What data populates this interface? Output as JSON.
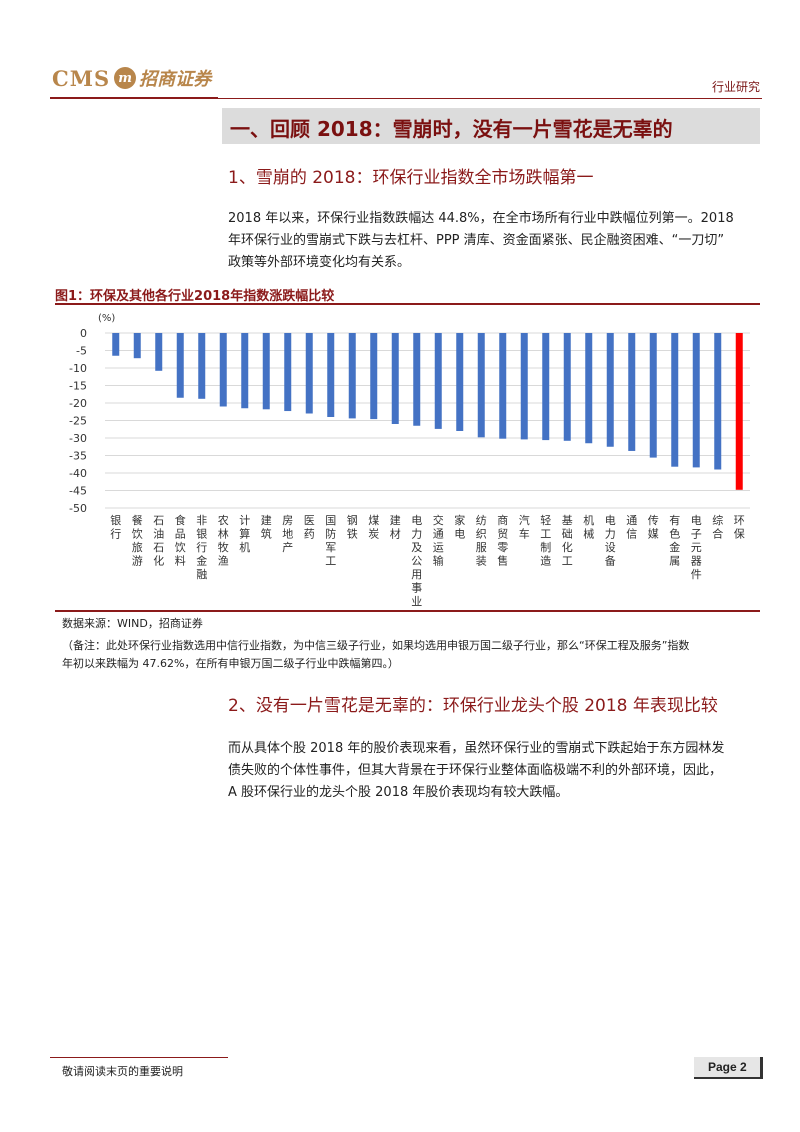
{
  "header": {
    "logo_en": "CMS",
    "logo_mark": "m",
    "logo_cn": "招商证券",
    "tag": "行业研究"
  },
  "section1": {
    "title": "一、回顾 2018：雪崩时，没有一片雪花是无辜的"
  },
  "sub1": {
    "title": "1、雪崩的 2018：环保行业指数全市场跌幅第一"
  },
  "para1": [
    "2018 年以来，环保行业指数跌幅达 44.8%，在全市场所有行业中跌幅位列第一。2018",
    "年环保行业的雪崩式下跌与去杠杆、PPP 清库、资金面紧张、民企融资困难、“一刀切”",
    "政策等外部环境变化均有关系。"
  ],
  "figure": {
    "title": "图1：环保及其他各行业2018年指数涨跌幅比较",
    "source": "数据来源：WIND，招商证券",
    "note_lines": [
      "（备注：此处环保行业指数选用中信行业指数，为中信三级子行业，如果均选用申银万国二级子行业，那么“环保工程及服务”指数",
      "年初以来跌幅为 47.62%，在所有申银万国二级子行业中跌幅第四。）"
    ]
  },
  "chart_data": {
    "type": "bar",
    "ylabel": "(%)",
    "ylim": [
      -50,
      0
    ],
    "yticks": [
      0,
      -5,
      -10,
      -15,
      -20,
      -25,
      -30,
      -35,
      -40,
      -45,
      -50
    ],
    "grid": true,
    "categories": [
      "银行",
      "餐饮旅游",
      "石油石化",
      "食品饮料",
      "非银行金融",
      "农林牧渔",
      "计算机",
      "建筑",
      "房地产",
      "医药",
      "国防军工",
      "钢铁",
      "煤炭",
      "建材",
      "电力及公用事业",
      "交通运输",
      "家电",
      "纺织服装",
      "商贸零售",
      "汽车",
      "轻工制造",
      "基础化工",
      "机械",
      "电力设备",
      "通信",
      "传媒",
      "有色金属",
      "电子元器件",
      "综合",
      "环保"
    ],
    "values": [
      -6.5,
      -7.2,
      -10.8,
      -18.5,
      -18.8,
      -21.0,
      -21.5,
      -21.8,
      -22.3,
      -23.0,
      -24.0,
      -24.4,
      -24.6,
      -26.0,
      -26.5,
      -27.4,
      -28.0,
      -29.8,
      -30.2,
      -30.4,
      -30.6,
      -30.8,
      -31.5,
      -32.5,
      -33.7,
      -35.6,
      -38.2,
      -38.4,
      -39.0,
      -44.8
    ],
    "colors": {
      "default": "#4472c4",
      "highlight": "#ff0000"
    },
    "highlight_index": 29
  },
  "sub2": {
    "title": "2、没有一片雪花是无辜的：环保行业龙头个股 2018 年表现比较"
  },
  "para2": [
    "而从具体个股 2018 年的股价表现来看，虽然环保行业的雪崩式下跌起始于东方园林发",
    "债失败的个体性事件，但其大背景在于环保行业整体面临极端不利的外部环境，因此，",
    "A 股环保行业的龙头个股 2018 年股价表现均有较大跌幅。"
  ],
  "footer": {
    "text": "敬请阅读末页的重要说明",
    "page": "Page 2"
  }
}
